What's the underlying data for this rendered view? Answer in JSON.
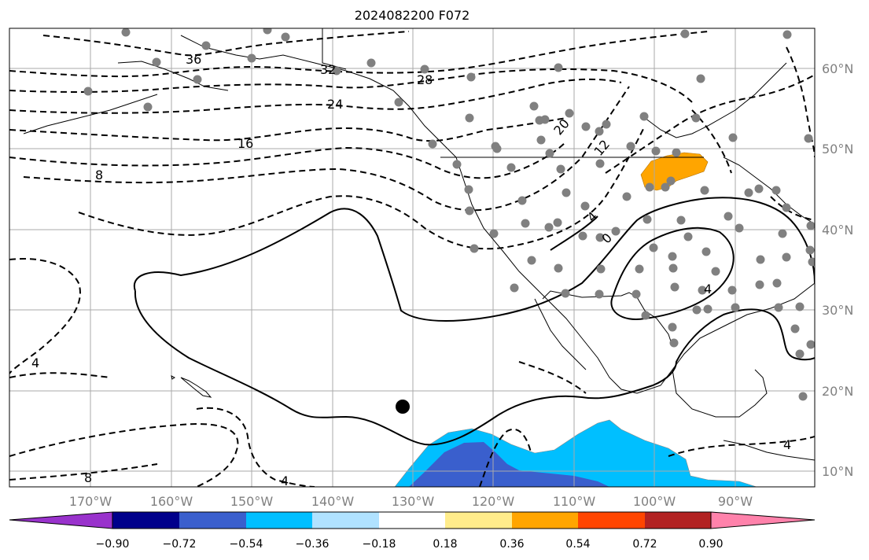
{
  "title": "2024082200 F072",
  "longitude_labels": [
    "170°W",
    "160°W",
    "150°W",
    "140°W",
    "130°W",
    "120°W",
    "110°W",
    "100°W",
    "90°W"
  ],
  "latitude_labels": [
    "60°N",
    "50°N",
    "40°N",
    "30°N",
    "20°N",
    "10°N"
  ],
  "contour_labels": [
    "36",
    "32",
    "28",
    "24",
    "20",
    "16",
    "12",
    "8",
    "4",
    "0",
    "4",
    "4",
    "8",
    "4",
    "4"
  ],
  "colorbar": {
    "ticks": [
      "−0.90",
      "−0.72",
      "−0.54",
      "−0.36",
      "−0.18",
      "0.18",
      "0.36",
      "0.54",
      "0.72",
      "0.90"
    ],
    "colors": [
      "#9932CC",
      "#00008B",
      "#3A5FCD",
      "#00BFFF",
      "#B0E2FF",
      "#FFFFFF",
      "#FFEC8B",
      "#FFA500",
      "#FF4500",
      "#B22222",
      "#FF82AB"
    ]
  },
  "colors": {
    "grid": "#aaaaaa",
    "coast": "#000000",
    "station": "#808080",
    "positive_anomaly": "#FFA500",
    "negative_light": "#00BFFF",
    "negative_dark": "#3A5FCD"
  },
  "marker": "black-dot"
}
